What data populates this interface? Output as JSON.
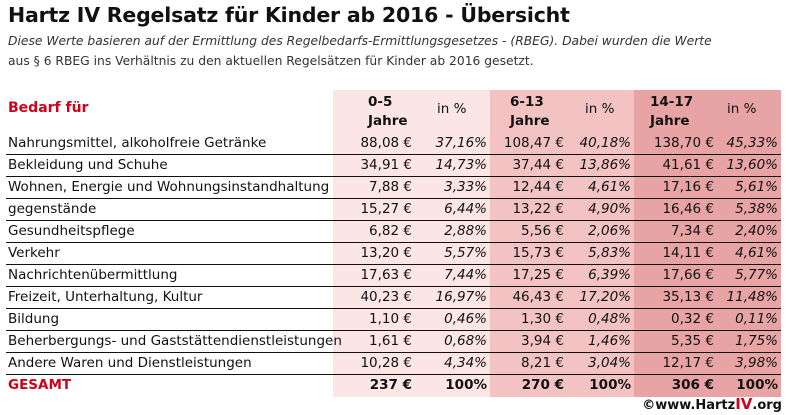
{
  "title": "Hartz IV Regelsatz für Kinder ab 2016 - Übersicht",
  "subtitle_line1": "Diese Werte basieren auf der Ermittlung des Regelbedarfs-Ermittlungsgesetzes - (RBEG). Dabei wurden die Werte",
  "subtitle_line2": "aus § 6 RBEG ins Verhältnis zu den aktuellen Regelsätzen für Kinder ab 2016 gesetzt.",
  "header": {
    "label": "Bedarf für",
    "age1": "0-5",
    "age2": "6-13",
    "age3": "14-17",
    "unit": "Jahre",
    "pct": "in %"
  },
  "colors": {
    "accent_red": "#d0021b",
    "band_1": "#fbe5e5",
    "band_2": "#f3c3c3",
    "band_3": "#e8a4a4"
  },
  "rows": [
    {
      "name": "Nahrungsmittel, alkoholfreie Getränke",
      "v1": "88,08 €",
      "p1": "37,16%",
      "v2": "108,47 €",
      "p2": "40,18%",
      "v3": "138,70 €",
      "p3": "45,33%"
    },
    {
      "name": "Bekleidung und Schuhe",
      "v1": "34,91 €",
      "p1": "14,73%",
      "v2": "37,44 €",
      "p2": "13,86%",
      "v3": "41,61 €",
      "p3": "13,60%"
    },
    {
      "name": "Wohnen, Energie und Wohnungsinstandhaltung",
      "v1": "7,88 €",
      "p1": "3,33%",
      "v2": "12,44 €",
      "p2": "4,61%",
      "v3": "17,16 €",
      "p3": "5,61%"
    },
    {
      "name": "gegenstände",
      "v1": "15,27 €",
      "p1": "6,44%",
      "v2": "13,22 €",
      "p2": "4,90%",
      "v3": "16,46 €",
      "p3": "5,38%"
    },
    {
      "name": "Gesundheitspflege",
      "v1": "6,82 €",
      "p1": "2,88%",
      "v2": "5,56 €",
      "p2": "2,06%",
      "v3": "7,34 €",
      "p3": "2,40%"
    },
    {
      "name": "Verkehr",
      "v1": "13,20 €",
      "p1": "5,57%",
      "v2": "15,73 €",
      "p2": "5,83%",
      "v3": "14,11 €",
      "p3": "4,61%"
    },
    {
      "name": "Nachrichtenübermittlung",
      "v1": "17,63 €",
      "p1": "7,44%",
      "v2": "17,25 €",
      "p2": "6,39%",
      "v3": "17,66 €",
      "p3": "5,77%"
    },
    {
      "name": "Freizeit, Unterhaltung, Kultur",
      "v1": "40,23 €",
      "p1": "16,97%",
      "v2": "46,43 €",
      "p2": "17,20%",
      "v3": "35,13 €",
      "p3": "11,48%"
    },
    {
      "name": "Bildung",
      "v1": "1,10 €",
      "p1": "0,46%",
      "v2": "1,30 €",
      "p2": "0,48%",
      "v3": "0,32 €",
      "p3": "0,11%"
    },
    {
      "name": "Beherbergungs- und Gaststättendienstleistungen",
      "v1": "1,61 €",
      "p1": "0,68%",
      "v2": "3,94 €",
      "p2": "1,46%",
      "v3": "5,35 €",
      "p3": "1,75%"
    },
    {
      "name": "Andere Waren und Dienstleistungen",
      "v1": "10,28 €",
      "p1": "4,34%",
      "v2": "8,21 €",
      "p2": "3,04%",
      "v3": "12,17 €",
      "p3": "3,98%"
    }
  ],
  "total": {
    "name": "GESAMT",
    "v1": "237 €",
    "p1": "100%",
    "v2": "270 €",
    "p2": "100%",
    "v3": "306 €",
    "p3": "100%"
  },
  "copyright": {
    "prefix": "©www.Hartz",
    "iv": "IV",
    "suffix": ".org"
  }
}
